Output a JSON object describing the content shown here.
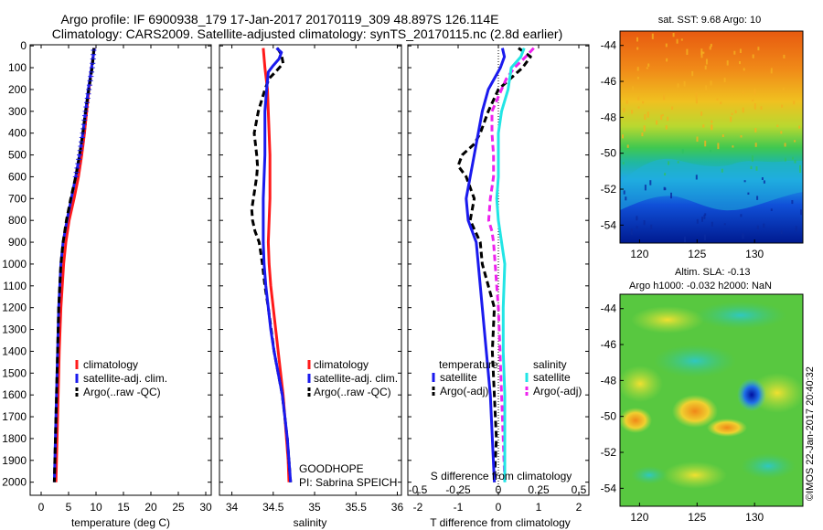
{
  "title": {
    "line1": "Argo profile: IF 6900938_179 17-Jan-2017 20170119_309 48.897S 126.114E",
    "line2": "Climatology: CARS2009. Satellite-adjusted climatology: synTS_20170115.nc (2.8d earlier)"
  },
  "colors": {
    "climatology": "#ff1a1a",
    "satellite": "#1a1aee",
    "argo": "#000000",
    "sat_salinity": "#22e5e5",
    "argo_salinity": "#ee22ee"
  },
  "depth_axis": {
    "ticks": [
      0,
      100,
      200,
      300,
      400,
      500,
      600,
      700,
      800,
      900,
      1000,
      1100,
      1200,
      1300,
      1400,
      1500,
      1600,
      1700,
      1800,
      1900,
      2000
    ]
  },
  "panel_temp": {
    "xlabel": "temperature (deg C)",
    "xticks": [
      "0",
      "5",
      "10",
      "15",
      "20",
      "25",
      "30"
    ],
    "legend": [
      "climatology",
      "satellite-adj. clim.",
      "Argo(..raw -QC)"
    ]
  },
  "panel_sal": {
    "xlabel": "salinity",
    "xticks": [
      "34",
      "34.5",
      "35",
      "35.5",
      "36"
    ],
    "legend": [
      "climatology",
      "satellite-adj. clim.",
      "Argo(..raw -QC)"
    ],
    "note1": "GOODHOPE",
    "note2": "PI: Sabrina SPEICH"
  },
  "panel_diff": {
    "xlabel": "T difference from climatology",
    "xlabel_top": "S difference from climatology",
    "xticks_t": [
      "-2",
      "-1",
      "0",
      "1",
      "2"
    ],
    "xticks_s": [
      "-0.5",
      "-0.25",
      "0",
      "0.25",
      "0.5"
    ],
    "legend_temp_head": "temperature",
    "legend_sal_head": "salinity",
    "legend_temp": [
      "satellite",
      "Argo(-adj)"
    ],
    "legend_sal": [
      "satellite",
      "Argo(-adj)"
    ]
  },
  "map_sst": {
    "title": "sat. SST: 9.68 Argo: 10",
    "yticks": [
      "-44",
      "-46",
      "-48",
      "-50",
      "-52",
      "-54"
    ],
    "xticks": [
      "120",
      "125",
      "130"
    ]
  },
  "map_sla": {
    "title1": "Altim. SLA: -0.13",
    "title2": "Argo h1000: -0.032 h2000: NaN",
    "yticks": [
      "-44",
      "-46",
      "-48",
      "-50",
      "-52",
      "-54"
    ],
    "xticks": [
      "120",
      "125",
      "130"
    ],
    "stamp": "©IMOS 22-Jan-2017 20:40:32"
  },
  "chart_data": [
    {
      "type": "line",
      "xlabel": "temperature (deg C)",
      "xlim": [
        -2,
        31
      ],
      "ylim": [
        2060,
        0
      ],
      "series": [
        {
          "name": "climatology",
          "depth": [
            10,
            100,
            200,
            300,
            400,
            500,
            600,
            700,
            800,
            900,
            1000,
            1200,
            1400,
            1600,
            1800,
            2000
          ],
          "values": [
            9.7,
            9.2,
            8.7,
            8.3,
            7.9,
            7.4,
            6.8,
            6.0,
            5.1,
            4.5,
            4.1,
            3.6,
            3.3,
            3.1,
            2.9,
            2.7
          ]
        },
        {
          "name": "satellite-adj. clim.",
          "depth": [
            10,
            100,
            200,
            300,
            400,
            500,
            600,
            700,
            800,
            900,
            1000,
            1200,
            1400,
            1600,
            1800,
            2000
          ],
          "values": [
            9.7,
            9.2,
            8.6,
            8.1,
            7.6,
            7.0,
            6.3,
            5.5,
            4.7,
            4.0,
            3.6,
            3.2,
            3.0,
            2.8,
            2.6,
            2.4
          ]
        },
        {
          "name": "Argo(..raw -QC)",
          "depth": [
            10,
            50,
            100,
            150,
            200,
            300,
            400,
            500,
            600,
            700,
            800,
            900,
            1000,
            1200,
            1400,
            1600,
            1800,
            2000
          ],
          "values": [
            9.6,
            9.5,
            9.3,
            9.0,
            8.7,
            8.1,
            7.6,
            7.0,
            6.3,
            5.4,
            4.6,
            4.0,
            3.6,
            3.2,
            3.0,
            2.8,
            2.6,
            2.4
          ]
        }
      ]
    },
    {
      "type": "line",
      "xlabel": "salinity",
      "xlim": [
        33.85,
        36.05
      ],
      "ylim": [
        2060,
        0
      ],
      "series": [
        {
          "name": "climatology",
          "depth": [
            10,
            100,
            200,
            300,
            400,
            500,
            600,
            700,
            800,
            900,
            1000,
            1100,
            1200,
            1300,
            1400,
            1500,
            1600,
            1700,
            1800,
            1900,
            2000
          ],
          "values": [
            34.38,
            34.4,
            34.43,
            34.44,
            34.45,
            34.46,
            34.46,
            34.46,
            34.45,
            34.44,
            34.45,
            34.47,
            34.5,
            34.53,
            34.56,
            34.59,
            34.62,
            34.64,
            34.66,
            34.68,
            34.69
          ]
        },
        {
          "name": "satellite-adj. clim.",
          "depth": [
            10,
            30,
            60,
            90,
            120,
            200,
            300,
            400,
            500,
            600,
            700,
            800,
            900,
            1000,
            1100,
            1200,
            1300,
            1400,
            1500,
            1600,
            1700,
            1800,
            1900,
            2000
          ],
          "values": [
            34.54,
            34.6,
            34.57,
            34.5,
            34.44,
            34.42,
            34.4,
            34.4,
            34.4,
            34.39,
            34.38,
            34.38,
            34.38,
            34.39,
            34.41,
            34.44,
            34.47,
            34.51,
            34.56,
            34.61,
            34.64,
            34.67,
            34.69,
            34.71
          ]
        },
        {
          "name": "Argo(..raw -QC)",
          "depth": [
            10,
            40,
            80,
            110,
            150,
            200,
            300,
            400,
            500,
            550,
            600,
            650,
            700,
            750,
            800,
            850,
            900,
            1000,
            1100,
            1200,
            1400,
            1600,
            1800,
            2000
          ],
          "values": [
            34.55,
            34.6,
            34.62,
            34.55,
            34.45,
            34.4,
            34.32,
            34.27,
            34.3,
            34.31,
            34.3,
            34.28,
            34.26,
            34.24,
            34.25,
            34.28,
            34.33,
            34.37,
            34.4,
            34.44,
            34.51,
            34.61,
            34.67,
            34.71
          ]
        }
      ]
    },
    {
      "type": "line",
      "xlabel": "T difference from climatology",
      "x2label": "S difference from climatology",
      "xlim": [
        -2.25,
        2.25
      ],
      "x2lim": [
        -0.5625,
        0.5625
      ],
      "ylim": [
        2060,
        0
      ],
      "series": [
        {
          "name": "satellite",
          "depth": [
            10,
            50,
            100,
            200,
            300,
            400,
            500,
            600,
            700,
            800,
            900,
            1000,
            1100,
            1200,
            1400,
            1600,
            1800,
            2000
          ],
          "values": [
            0.1,
            0.15,
            0.05,
            -0.25,
            -0.4,
            -0.5,
            -0.6,
            -0.7,
            -0.8,
            -0.75,
            -0.55,
            -0.5,
            -0.45,
            -0.4,
            -0.3,
            -0.2,
            -0.15,
            -0.1
          ]
        },
        {
          "name": "Argo(-adj)",
          "depth": [
            10,
            50,
            100,
            200,
            300,
            400,
            450,
            500,
            550,
            600,
            700,
            800,
            900,
            1000,
            1100,
            1200,
            1400,
            1600,
            1800,
            2000
          ],
          "values": [
            0.5,
            0.8,
            0.6,
            0.0,
            -0.25,
            -0.45,
            -0.6,
            -0.9,
            -1.0,
            -0.8,
            -0.6,
            -0.7,
            -0.45,
            -0.4,
            -0.25,
            -0.1,
            -0.15,
            -0.1,
            -0.05,
            -0.1
          ]
        },
        {
          "name": "satellite (salinity)",
          "depth": [
            10,
            50,
            100,
            200,
            300,
            400,
            500,
            600,
            700,
            800,
            900,
            1000,
            1200,
            1400,
            1600,
            1800,
            2000
          ],
          "values": [
            0.16,
            0.14,
            0.08,
            0.06,
            0.02,
            0.0,
            0.0,
            0.0,
            -0.01,
            0.0,
            0.02,
            0.04,
            0.03,
            0.03,
            0.04,
            0.04,
            0.04
          ]
        },
        {
          "name": "Argo(-adj) (salinity)",
          "depth": [
            10,
            50,
            100,
            150,
            200,
            300,
            400,
            500,
            600,
            700,
            800,
            850,
            900,
            1000,
            1100,
            1200,
            1400,
            1600,
            1800,
            2000
          ],
          "values": [
            0.22,
            0.17,
            0.1,
            0.05,
            0.02,
            -0.04,
            -0.04,
            -0.03,
            -0.03,
            -0.05,
            -0.06,
            -0.04,
            -0.03,
            -0.02,
            -0.01,
            0.0,
            0.01,
            0.02,
            0.03,
            0.04
          ]
        }
      ]
    }
  ]
}
